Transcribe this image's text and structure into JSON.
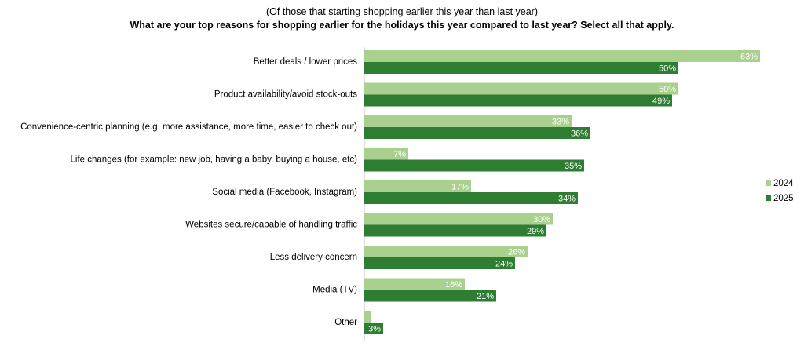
{
  "chart_data": {
    "type": "bar",
    "orientation": "horizontal",
    "subtitle": "(Of those that starting shopping earlier this year than last year)",
    "title": "What are your top reasons for shopping earlier for the holidays this year compared to last year?  Select all that apply.",
    "categories": [
      "Better deals / lower prices",
      "Product availability/avoid stock-outs",
      "Convenience-centric planning (e.g. more assistance, more time, easier to check out)",
      "Life changes (for example: new job, having a baby, buying a house, etc)",
      "Social media (Facebook, Instagram)",
      "Websites secure/capable of handling traffic",
      "Less delivery concern",
      "Media (TV)",
      "Other"
    ],
    "series": [
      {
        "name": "2024",
        "color": "#a9d08e",
        "values": [
          63,
          50,
          33,
          7,
          17,
          30,
          26,
          16,
          1
        ],
        "labels": [
          "63%",
          "50%",
          "33%",
          "7%",
          "17%",
          "30%",
          "26%",
          "16%",
          ""
        ]
      },
      {
        "name": "2025",
        "color": "#2e7d32",
        "values": [
          50,
          49,
          36,
          35,
          34,
          29,
          24,
          21,
          3
        ],
        "labels": [
          "50%",
          "49%",
          "36%",
          "35%",
          "34%",
          "29%",
          "24%",
          "21%",
          "3%"
        ]
      }
    ],
    "xlim": [
      0,
      70
    ],
    "grid": false,
    "legend_position": "right"
  }
}
